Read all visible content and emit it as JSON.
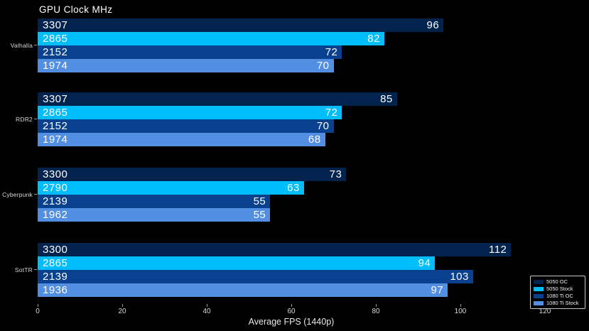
{
  "chart_data": {
    "type": "bar",
    "orientation": "horizontal",
    "title": "GPU Clock MHz",
    "xlabel": "Average FPS (1440p)",
    "xlim": [
      0,
      130
    ],
    "x_ticks": [
      0,
      20,
      40,
      60,
      80,
      100,
      120
    ],
    "grid": false,
    "background_color": "#000000",
    "categories": [
      "Valhalla",
      "RDR2",
      "Cyberpunk",
      "SotTR"
    ],
    "series": [
      {
        "name": "5050 OC",
        "color": "#03234f",
        "fps": [
          96,
          85,
          73,
          112
        ],
        "gpu_clock_mhz": [
          3307,
          3307,
          3300,
          3300
        ]
      },
      {
        "name": "5050 Stock",
        "color": "#00bdfc",
        "fps": [
          82,
          72,
          63,
          94
        ],
        "gpu_clock_mhz": [
          2865,
          2865,
          2790,
          2865
        ]
      },
      {
        "name": "1080 Ti OC",
        "color": "#09418f",
        "fps": [
          72,
          70,
          55,
          103
        ],
        "gpu_clock_mhz": [
          2152,
          2152,
          2139,
          2139
        ]
      },
      {
        "name": "1080 Ti Stock",
        "color": "#528ee2",
        "fps": [
          70,
          68,
          55,
          97
        ],
        "gpu_clock_mhz": [
          1974,
          1974,
          1962,
          1936
        ]
      }
    ],
    "bar_labels": {
      "left_inside": "gpu_clock_mhz",
      "right_inside": "fps",
      "text_color": "#ffffff"
    },
    "legend": {
      "position": "lower right",
      "entries": [
        "5050 OC",
        "5050 Stock",
        "1080 Ti OC",
        "1080 Ti Stock"
      ]
    },
    "axis_text_color": "#d9d9d9"
  }
}
